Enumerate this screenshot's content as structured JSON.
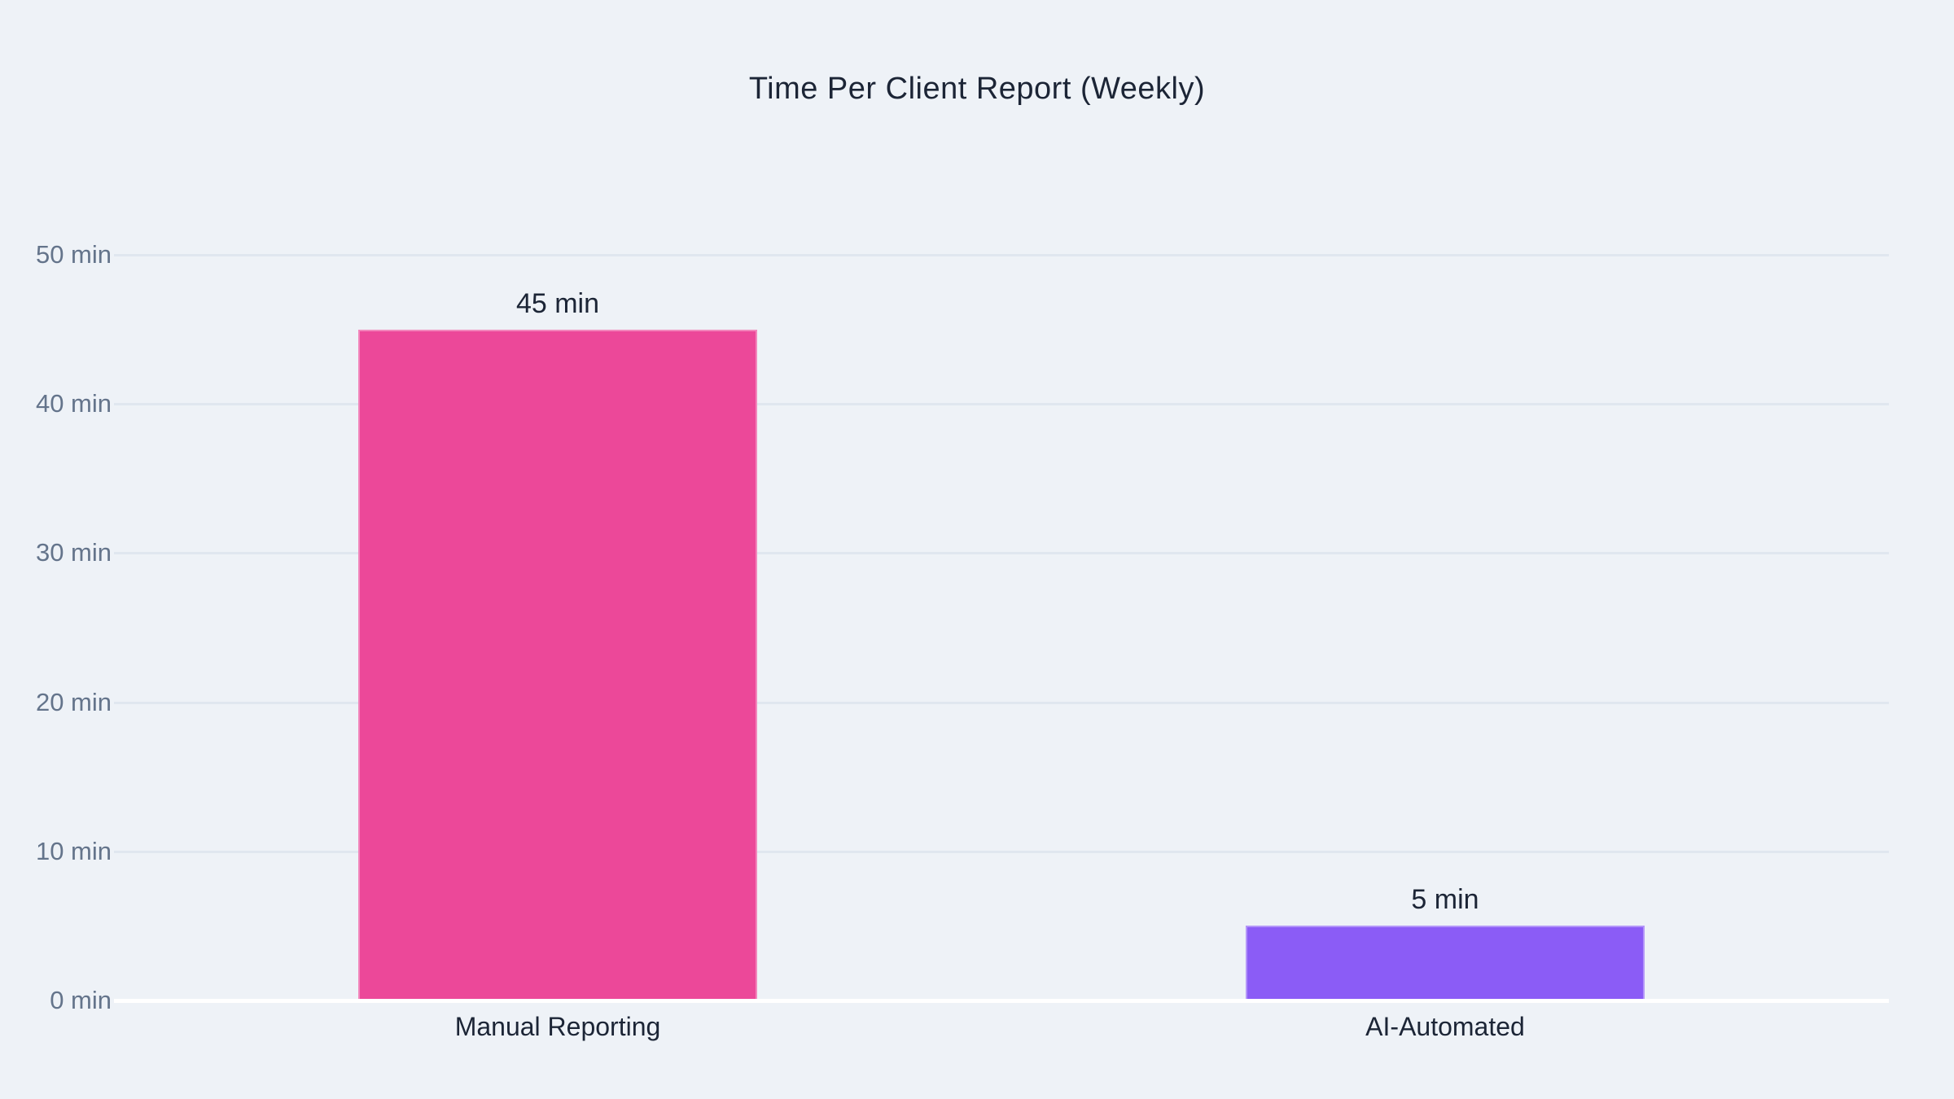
{
  "page": {
    "background": "#eef2f7"
  },
  "chart_data": {
    "type": "bar",
    "title": "Time Per Client Report (Weekly)",
    "categories": [
      "Manual Reporting",
      "AI-Automated"
    ],
    "values": [
      45,
      5
    ],
    "value_labels": [
      "45 min",
      "5 min"
    ],
    "bar_colors": [
      "#ec4899",
      "#8b5cf6"
    ],
    "xlabel": "",
    "ylabel": "",
    "ylim": [
      0,
      50
    ],
    "yticks": [
      0,
      10,
      20,
      30,
      40,
      50
    ],
    "ytick_labels": [
      "0 min",
      "10 min",
      "20 min",
      "30 min",
      "40 min",
      "50 min"
    ],
    "grid": true,
    "legend_position": "none",
    "title_color": "#1c2536",
    "label_color": "#1c2536",
    "tick_color": "#64748b",
    "gridline_color": "#e0e7ef",
    "axis_line_color": "#ffffff"
  }
}
